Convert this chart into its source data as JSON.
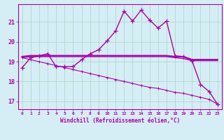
{
  "xlabel": "Windchill (Refroidissement éolien,°C)",
  "background_color": "#d5eef5",
  "grid_color": "#b0d8cc",
  "line_color": "#aa00aa",
  "xlim_min": -0.5,
  "xlim_max": 23.5,
  "ylim_min": 16.6,
  "ylim_max": 21.9,
  "x_ticks": [
    0,
    1,
    2,
    3,
    4,
    5,
    6,
    7,
    8,
    9,
    10,
    11,
    12,
    13,
    14,
    15,
    16,
    17,
    18,
    19,
    20,
    21,
    22,
    23
  ],
  "y_ticks": [
    17,
    18,
    19,
    20,
    21
  ],
  "curve_main": [
    18.7,
    19.2,
    19.3,
    19.4,
    18.75,
    18.75,
    18.75,
    19.1,
    19.4,
    19.6,
    20.05,
    20.55,
    21.55,
    21.05,
    21.6,
    21.1,
    20.7,
    21.05,
    19.3,
    19.25,
    19.05,
    17.85,
    17.5,
    16.85
  ],
  "curve_flat1": [
    19.25,
    19.3,
    19.3,
    19.3,
    19.3,
    19.3,
    19.3,
    19.3,
    19.3,
    19.3,
    19.3,
    19.3,
    19.3,
    19.3,
    19.3,
    19.3,
    19.3,
    19.3,
    19.25,
    19.25,
    19.1,
    19.1,
    19.1,
    19.1
  ],
  "curve_flat2": [
    19.2,
    19.25,
    19.25,
    19.25,
    19.25,
    19.25,
    19.25,
    19.25,
    19.25,
    19.25,
    19.25,
    19.25,
    19.25,
    19.25,
    19.25,
    19.25,
    19.25,
    19.25,
    19.2,
    19.15,
    19.05,
    19.05,
    19.05,
    19.05
  ],
  "curve_decline": [
    19.2,
    19.1,
    19.0,
    18.9,
    18.8,
    18.7,
    18.6,
    18.5,
    18.4,
    18.3,
    18.2,
    18.1,
    18.0,
    17.9,
    17.8,
    17.7,
    17.65,
    17.55,
    17.45,
    17.4,
    17.3,
    17.2,
    17.1,
    16.85
  ]
}
